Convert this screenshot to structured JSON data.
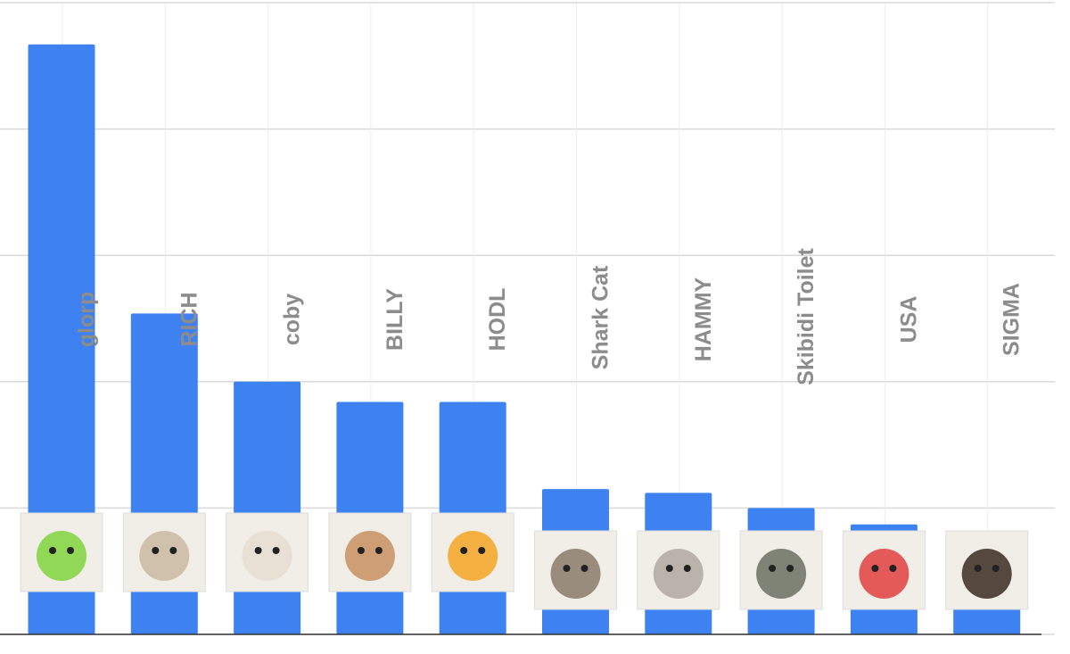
{
  "chart_data": {
    "type": "bar",
    "title": "",
    "xlabel": "",
    "ylabel": "",
    "ylim": [
      0,
      5
    ],
    "y_gridlines": [
      0,
      1,
      2,
      3,
      4,
      5
    ],
    "grid": true,
    "bar_color": "#3d82f0",
    "categories": [
      "glorp",
      "RICH",
      "coby",
      "BILLY",
      "HODL",
      "Shark Cat",
      "HAMMY",
      "Skibidi Toilet",
      "USA",
      "SIGMA"
    ],
    "values": [
      4.67,
      2.54,
      2.0,
      1.84,
      1.84,
      1.15,
      1.12,
      1.0,
      0.87,
      0.79
    ],
    "icons": [
      "green-alien-cat-icon",
      "goku-relaxing-icon",
      "puppy-bunny-hat-icon",
      "puppy-icon",
      "orange-mascot-icon",
      "cat-shark-hat-icon",
      "hamster-icon",
      "skibidi-toilet-icon",
      "usa-eagle-icon",
      "sigma-man-icon"
    ],
    "icon_colors": [
      "#7fd33c",
      "#c9b8a0",
      "#e6ddd0",
      "#c89060",
      "#f5a623",
      "#8a7a6a",
      "#b0a8a0",
      "#6a7060",
      "#e04040",
      "#3a2a20"
    ]
  }
}
